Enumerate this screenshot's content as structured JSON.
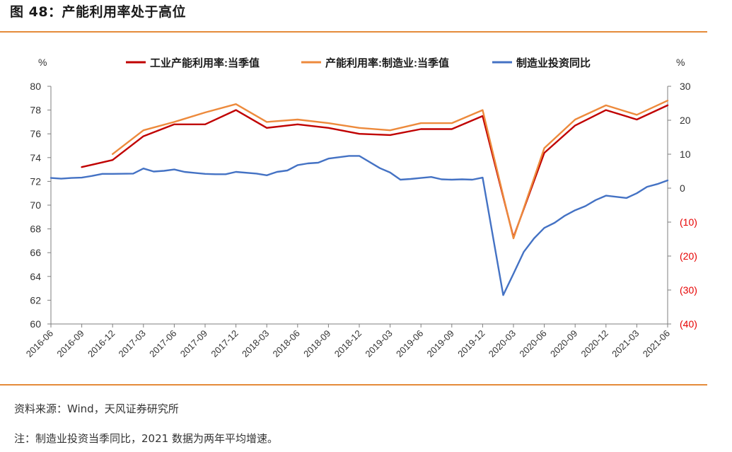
{
  "figure": {
    "title": "图 48：产能利用率处于高位",
    "source": "资料来源：Wind，天风证券研究所",
    "note": "注：制造业投资当季同比，2021 数据为两年平均增速。"
  },
  "chart_data": {
    "type": "line",
    "y_left": {
      "unit": "%",
      "lim": [
        60,
        80
      ],
      "ticks": [
        80,
        78,
        76,
        74,
        72,
        70,
        68,
        66,
        64,
        62,
        60
      ],
      "tick_labels": [
        "80",
        "78",
        "76",
        "74",
        "72",
        "70",
        "68",
        "66",
        "64",
        "62",
        "60"
      ]
    },
    "y_right": {
      "unit": "%",
      "lim": [
        -40,
        30
      ],
      "ticks": [
        30,
        20,
        10,
        0,
        -10,
        -20,
        -30,
        -40
      ],
      "tick_labels": [
        "30",
        "20",
        "10",
        "0",
        "(10)",
        "(20)",
        "(30)",
        "(40)"
      ],
      "negative_color": "#e60000"
    },
    "x_tick_labels": [
      "2016-06",
      "2016-09",
      "2016-12",
      "2017-03",
      "2017-06",
      "2017-09",
      "2017-12",
      "2018-03",
      "2018-06",
      "2018-09",
      "2018-12",
      "2019-03",
      "2019-06",
      "2019-09",
      "2019-12",
      "2020-03",
      "2020-06",
      "2020-09",
      "2020-12",
      "2021-03",
      "2021-06"
    ],
    "legend_position": "top",
    "series": [
      {
        "name": "工业产能利用率:当季值",
        "axis": "left",
        "color": "#c00000",
        "points": [
          [
            "2016-09",
            73.2
          ],
          [
            "2016-12",
            73.8
          ],
          [
            "2017-03",
            75.8
          ],
          [
            "2017-06",
            76.8
          ],
          [
            "2017-09",
            76.8
          ],
          [
            "2017-12",
            78.0
          ],
          [
            "2018-03",
            76.5
          ],
          [
            "2018-06",
            76.8
          ],
          [
            "2018-09",
            76.5
          ],
          [
            "2018-12",
            76.0
          ],
          [
            "2019-03",
            75.9
          ],
          [
            "2019-06",
            76.4
          ],
          [
            "2019-09",
            76.4
          ],
          [
            "2019-12",
            77.5
          ],
          [
            "2020-03",
            67.3
          ],
          [
            "2020-06",
            74.4
          ],
          [
            "2020-09",
            76.7
          ],
          [
            "2020-12",
            78.0
          ],
          [
            "2021-03",
            77.2
          ],
          [
            "2021-06",
            78.4
          ]
        ]
      },
      {
        "name": "产能利用率:制造业:当季值",
        "axis": "left",
        "color": "#ed8a3c",
        "points": [
          [
            "2016-12",
            74.3
          ],
          [
            "2017-03",
            76.3
          ],
          [
            "2017-06",
            77.0
          ],
          [
            "2017-09",
            77.8
          ],
          [
            "2017-12",
            78.5
          ],
          [
            "2018-03",
            77.0
          ],
          [
            "2018-06",
            77.2
          ],
          [
            "2018-09",
            76.9
          ],
          [
            "2018-12",
            76.5
          ],
          [
            "2019-03",
            76.3
          ],
          [
            "2019-06",
            76.9
          ],
          [
            "2019-09",
            76.9
          ],
          [
            "2019-12",
            78.0
          ],
          [
            "2020-03",
            67.2
          ],
          [
            "2020-06",
            74.8
          ],
          [
            "2020-09",
            77.2
          ],
          [
            "2020-12",
            78.4
          ],
          [
            "2021-03",
            77.6
          ],
          [
            "2021-06",
            78.8
          ]
        ]
      },
      {
        "name": "制造业投资同比",
        "axis": "right",
        "color": "#4472c4",
        "points": [
          [
            "2016-06",
            3.0
          ],
          [
            "2016-07",
            2.8
          ],
          [
            "2016-08",
            3.0
          ],
          [
            "2016-09",
            3.1
          ],
          [
            "2016-10",
            3.6
          ],
          [
            "2016-11",
            4.2
          ],
          [
            "2016-12",
            4.2
          ],
          [
            "2017-02",
            4.3
          ],
          [
            "2017-03",
            5.8
          ],
          [
            "2017-04",
            4.9
          ],
          [
            "2017-05",
            5.1
          ],
          [
            "2017-06",
            5.5
          ],
          [
            "2017-07",
            4.8
          ],
          [
            "2017-08",
            4.5
          ],
          [
            "2017-09",
            4.2
          ],
          [
            "2017-10",
            4.1
          ],
          [
            "2017-11",
            4.1
          ],
          [
            "2017-12",
            4.8
          ],
          [
            "2018-02",
            4.3
          ],
          [
            "2018-03",
            3.8
          ],
          [
            "2018-04",
            4.8
          ],
          [
            "2018-05",
            5.2
          ],
          [
            "2018-06",
            6.8
          ],
          [
            "2018-07",
            7.3
          ],
          [
            "2018-08",
            7.5
          ],
          [
            "2018-09",
            8.7
          ],
          [
            "2018-10",
            9.1
          ],
          [
            "2018-11",
            9.5
          ],
          [
            "2018-12",
            9.5
          ],
          [
            "2019-02",
            5.9
          ],
          [
            "2019-03",
            4.6
          ],
          [
            "2019-04",
            2.5
          ],
          [
            "2019-05",
            2.7
          ],
          [
            "2019-06",
            3.0
          ],
          [
            "2019-07",
            3.3
          ],
          [
            "2019-08",
            2.6
          ],
          [
            "2019-09",
            2.5
          ],
          [
            "2019-10",
            2.6
          ],
          [
            "2019-11",
            2.5
          ],
          [
            "2019-12",
            3.1
          ],
          [
            "2020-02",
            -31.5
          ],
          [
            "2020-03",
            -25.2
          ],
          [
            "2020-04",
            -18.8
          ],
          [
            "2020-05",
            -14.8
          ],
          [
            "2020-06",
            -11.7
          ],
          [
            "2020-07",
            -10.2
          ],
          [
            "2020-08",
            -8.1
          ],
          [
            "2020-09",
            -6.5
          ],
          [
            "2020-10",
            -5.3
          ],
          [
            "2020-11",
            -3.5
          ],
          [
            "2020-12",
            -2.2
          ],
          [
            "2021-02",
            -2.9
          ],
          [
            "2021-03",
            -1.5
          ],
          [
            "2021-04",
            0.4
          ],
          [
            "2021-05",
            1.2
          ],
          [
            "2021-06",
            2.3
          ]
        ]
      }
    ]
  }
}
